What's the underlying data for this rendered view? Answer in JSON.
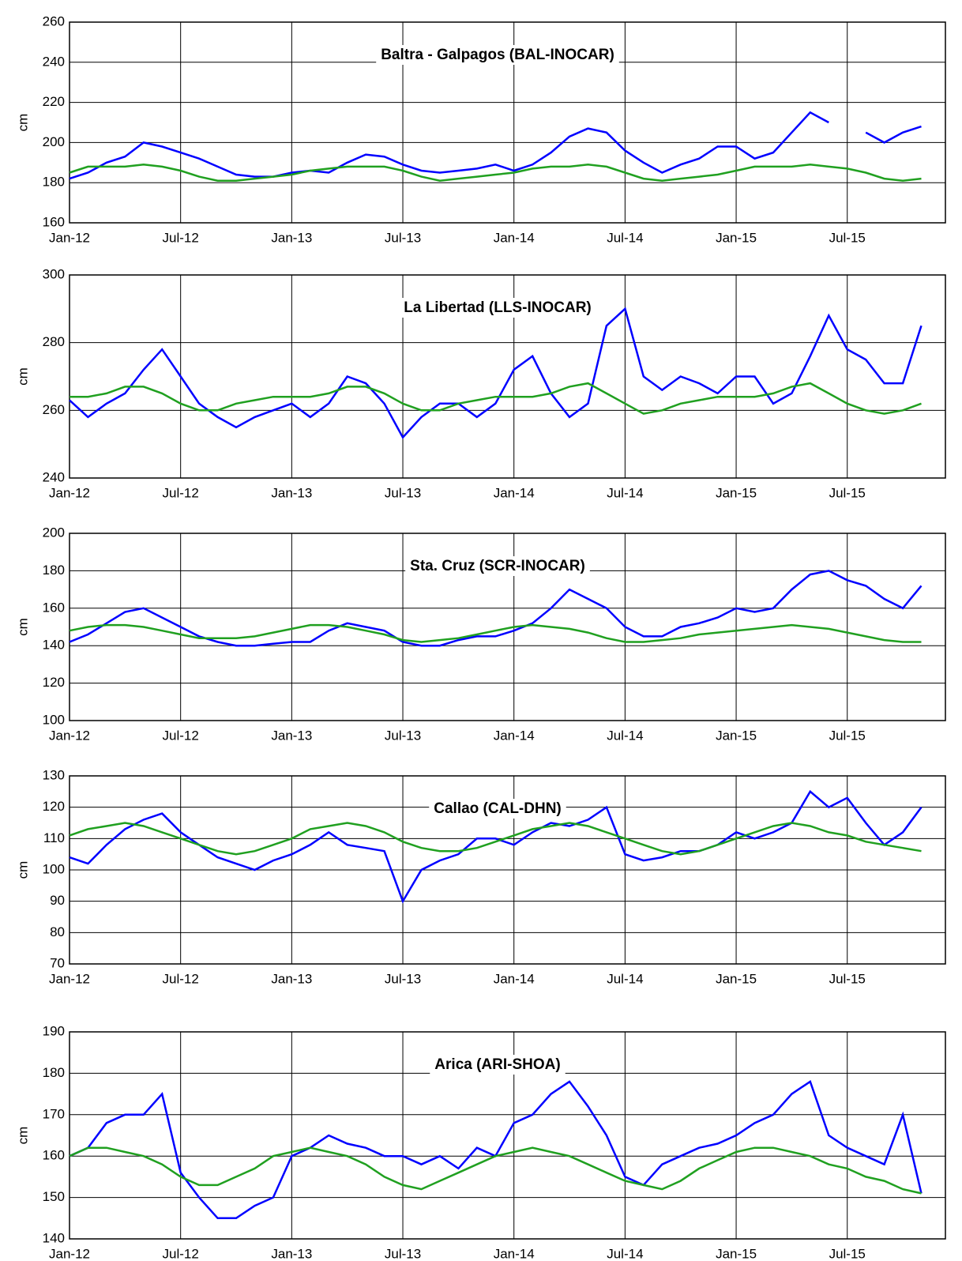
{
  "chart_data": [
    {
      "type": "line",
      "title": "Baltra - Galpagos (BAL-INOCAR)",
      "y_label": "cm",
      "x": [
        "Jan-12",
        "Feb-12",
        "Mar-12",
        "Apr-12",
        "May-12",
        "Jun-12",
        "Jul-12",
        "Aug-12",
        "Sep-12",
        "Oct-12",
        "Nov-12",
        "Dec-12",
        "Jan-13",
        "Feb-13",
        "Mar-13",
        "Apr-13",
        "May-13",
        "Jun-13",
        "Jul-13",
        "Aug-13",
        "Sep-13",
        "Oct-13",
        "Nov-13",
        "Dec-13",
        "Jan-14",
        "Feb-14",
        "Mar-14",
        "Apr-14",
        "May-14",
        "Jun-14",
        "Jul-14",
        "Aug-14",
        "Sep-14",
        "Oct-14",
        "Nov-14",
        "Dec-14",
        "Jan-15",
        "Feb-15",
        "Mar-15",
        "Apr-15",
        "May-15",
        "Jun-15",
        "Jul-15",
        "Aug-15",
        "Sep-15",
        "Oct-15",
        "Nov-15"
      ],
      "series": [
        {
          "color": "#0000ff",
          "values": [
            182,
            185,
            190,
            193,
            200,
            198,
            195,
            192,
            188,
            184,
            183,
            183,
            185,
            186,
            185,
            190,
            194,
            193,
            189,
            186,
            185,
            186,
            187,
            189,
            186,
            189,
            195,
            203,
            207,
            205,
            196,
            190,
            185,
            189,
            192,
            198,
            198,
            192,
            195,
            205,
            215,
            210,
            null,
            205,
            200,
            205,
            208
          ]
        },
        {
          "color": "#20a020",
          "values": [
            185,
            188,
            188,
            188,
            189,
            188,
            186,
            183,
            181,
            181,
            182,
            183,
            184,
            186,
            187,
            188,
            188,
            188,
            186,
            183,
            181,
            182,
            183,
            184,
            185,
            187,
            188,
            188,
            189,
            188,
            185,
            182,
            181,
            182,
            183,
            184,
            186,
            188,
            188,
            188,
            189,
            188,
            187,
            185,
            182,
            181,
            182
          ]
        }
      ],
      "ylim": [
        160,
        260
      ],
      "yticks": [
        160,
        180,
        200,
        220,
        240,
        260
      ],
      "grid": true
    },
    {
      "type": "line",
      "title": "La Libertad (LLS-INOCAR)",
      "y_label": "cm",
      "x": [
        "Jan-12",
        "Feb-12",
        "Mar-12",
        "Apr-12",
        "May-12",
        "Jun-12",
        "Jul-12",
        "Aug-12",
        "Sep-12",
        "Oct-12",
        "Nov-12",
        "Dec-12",
        "Jan-13",
        "Feb-13",
        "Mar-13",
        "Apr-13",
        "May-13",
        "Jun-13",
        "Jul-13",
        "Aug-13",
        "Sep-13",
        "Oct-13",
        "Nov-13",
        "Dec-13",
        "Jan-14",
        "Feb-14",
        "Mar-14",
        "Apr-14",
        "May-14",
        "Jun-14",
        "Jul-14",
        "Aug-14",
        "Sep-14",
        "Oct-14",
        "Nov-14",
        "Dec-14",
        "Jan-15",
        "Feb-15",
        "Mar-15",
        "Apr-15",
        "May-15",
        "Jun-15",
        "Jul-15",
        "Aug-15",
        "Sep-15",
        "Oct-15",
        "Nov-15"
      ],
      "series": [
        {
          "color": "#0000ff",
          "values": [
            263,
            258,
            262,
            265,
            272,
            278,
            270,
            262,
            258,
            255,
            258,
            260,
            262,
            258,
            262,
            270,
            268,
            262,
            252,
            258,
            262,
            262,
            258,
            262,
            272,
            276,
            265,
            258,
            262,
            285,
            290,
            270,
            266,
            270,
            268,
            265,
            270,
            270,
            262,
            265,
            276,
            288,
            278,
            275,
            268,
            268,
            285
          ]
        },
        {
          "color": "#20a020",
          "values": [
            264,
            264,
            265,
            267,
            267,
            265,
            262,
            260,
            260,
            262,
            263,
            264,
            264,
            264,
            265,
            267,
            267,
            265,
            262,
            260,
            260,
            262,
            263,
            264,
            264,
            264,
            265,
            267,
            268,
            265,
            262,
            259,
            260,
            262,
            263,
            264,
            264,
            264,
            265,
            267,
            268,
            265,
            262,
            260,
            259,
            260,
            262
          ]
        }
      ],
      "ylim": [
        240,
        300
      ],
      "yticks": [
        240,
        260,
        280,
        300
      ],
      "grid": true
    },
    {
      "type": "line",
      "title": "Sta. Cruz (SCR-INOCAR)",
      "y_label": "cm",
      "x": [
        "Jan-12",
        "Feb-12",
        "Mar-12",
        "Apr-12",
        "May-12",
        "Jun-12",
        "Jul-12",
        "Aug-12",
        "Sep-12",
        "Oct-12",
        "Nov-12",
        "Dec-12",
        "Jan-13",
        "Feb-13",
        "Mar-13",
        "Apr-13",
        "May-13",
        "Jun-13",
        "Jul-13",
        "Aug-13",
        "Sep-13",
        "Oct-13",
        "Nov-13",
        "Dec-13",
        "Jan-14",
        "Feb-14",
        "Mar-14",
        "Apr-14",
        "May-14",
        "Jun-14",
        "Jul-14",
        "Aug-14",
        "Sep-14",
        "Oct-14",
        "Nov-14",
        "Dec-14",
        "Jan-15",
        "Feb-15",
        "Mar-15",
        "Apr-15",
        "May-15",
        "Jun-15",
        "Jul-15",
        "Aug-15",
        "Sep-15",
        "Oct-15",
        "Nov-15"
      ],
      "series": [
        {
          "color": "#0000ff",
          "values": [
            142,
            146,
            152,
            158,
            160,
            155,
            150,
            145,
            142,
            140,
            140,
            141,
            142,
            142,
            148,
            152,
            150,
            148,
            142,
            140,
            140,
            143,
            145,
            145,
            148,
            152,
            160,
            170,
            165,
            160,
            150,
            145,
            145,
            150,
            152,
            155,
            160,
            158,
            160,
            170,
            178,
            180,
            175,
            172,
            165,
            160,
            172
          ]
        },
        {
          "color": "#20a020",
          "values": [
            148,
            150,
            151,
            151,
            150,
            148,
            146,
            144,
            144,
            144,
            145,
            147,
            149,
            151,
            151,
            150,
            148,
            146,
            143,
            142,
            143,
            144,
            146,
            148,
            150,
            151,
            150,
            149,
            147,
            144,
            142,
            142,
            143,
            144,
            146,
            147,
            148,
            149,
            150,
            151,
            150,
            149,
            147,
            145,
            143,
            142,
            142
          ]
        }
      ],
      "ylim": [
        100,
        200
      ],
      "yticks": [
        100,
        120,
        140,
        160,
        180,
        200
      ],
      "grid": true
    },
    {
      "type": "line",
      "title": "Callao (CAL-DHN)",
      "y_label": "cm",
      "x": [
        "Jan-12",
        "Feb-12",
        "Mar-12",
        "Apr-12",
        "May-12",
        "Jun-12",
        "Jul-12",
        "Aug-12",
        "Sep-12",
        "Oct-12",
        "Nov-12",
        "Dec-12",
        "Jan-13",
        "Feb-13",
        "Mar-13",
        "Apr-13",
        "May-13",
        "Jun-13",
        "Jul-13",
        "Aug-13",
        "Sep-13",
        "Oct-13",
        "Nov-13",
        "Dec-13",
        "Jan-14",
        "Feb-14",
        "Mar-14",
        "Apr-14",
        "May-14",
        "Jun-14",
        "Jul-14",
        "Aug-14",
        "Sep-14",
        "Oct-14",
        "Nov-14",
        "Dec-14",
        "Jan-15",
        "Feb-15",
        "Mar-15",
        "Apr-15",
        "May-15",
        "Jun-15",
        "Jul-15",
        "Aug-15",
        "Sep-15",
        "Oct-15",
        "Nov-15"
      ],
      "series": [
        {
          "color": "#0000ff",
          "values": [
            104,
            102,
            108,
            113,
            116,
            118,
            112,
            108,
            104,
            102,
            100,
            103,
            105,
            108,
            112,
            108,
            107,
            106,
            90,
            100,
            103,
            105,
            110,
            110,
            108,
            112,
            115,
            114,
            116,
            120,
            105,
            103,
            104,
            106,
            106,
            108,
            112,
            110,
            112,
            115,
            125,
            120,
            123,
            115,
            108,
            112,
            120
          ]
        },
        {
          "color": "#20a020",
          "values": [
            111,
            113,
            114,
            115,
            114,
            112,
            110,
            108,
            106,
            105,
            106,
            108,
            110,
            113,
            114,
            115,
            114,
            112,
            109,
            107,
            106,
            106,
            107,
            109,
            111,
            113,
            114,
            115,
            114,
            112,
            110,
            108,
            106,
            105,
            106,
            108,
            110,
            112,
            114,
            115,
            114,
            112,
            111,
            109,
            108,
            107,
            106
          ]
        }
      ],
      "ylim": [
        70,
        130
      ],
      "yticks": [
        70,
        80,
        90,
        100,
        110,
        120,
        130
      ],
      "grid": true
    },
    {
      "type": "line",
      "title": "Arica (ARI-SHOA)",
      "y_label": "cm",
      "x": [
        "Jan-12",
        "Feb-12",
        "Mar-12",
        "Apr-12",
        "May-12",
        "Jun-12",
        "Jul-12",
        "Aug-12",
        "Sep-12",
        "Oct-12",
        "Nov-12",
        "Dec-12",
        "Jan-13",
        "Feb-13",
        "Mar-13",
        "Apr-13",
        "May-13",
        "Jun-13",
        "Jul-13",
        "Aug-13",
        "Sep-13",
        "Oct-13",
        "Nov-13",
        "Dec-13",
        "Jan-14",
        "Feb-14",
        "Mar-14",
        "Apr-14",
        "May-14",
        "Jun-14",
        "Jul-14",
        "Aug-14",
        "Sep-14",
        "Oct-14",
        "Nov-14",
        "Dec-14",
        "Jan-15",
        "Feb-15",
        "Mar-15",
        "Apr-15",
        "May-15",
        "Jun-15",
        "Jul-15",
        "Aug-15",
        "Sep-15",
        "Oct-15",
        "Nov-15"
      ],
      "series": [
        {
          "color": "#0000ff",
          "values": [
            160,
            162,
            168,
            170,
            170,
            175,
            156,
            150,
            145,
            145,
            148,
            150,
            160,
            162,
            165,
            163,
            162,
            160,
            160,
            158,
            160,
            157,
            162,
            160,
            168,
            170,
            175,
            178,
            172,
            165,
            155,
            153,
            158,
            160,
            162,
            163,
            165,
            168,
            170,
            175,
            178,
            165,
            162,
            160,
            158,
            170,
            151
          ]
        },
        {
          "color": "#20a020",
          "values": [
            160,
            162,
            162,
            161,
            160,
            158,
            155,
            153,
            153,
            155,
            157,
            160,
            161,
            162,
            161,
            160,
            158,
            155,
            153,
            152,
            154,
            156,
            158,
            160,
            161,
            162,
            161,
            160,
            158,
            156,
            154,
            153,
            152,
            154,
            157,
            159,
            161,
            162,
            162,
            161,
            160,
            158,
            157,
            155,
            154,
            152,
            151
          ]
        }
      ],
      "ylim": [
        140,
        190
      ],
      "yticks": [
        140,
        150,
        160,
        170,
        180,
        190
      ],
      "grid": true
    }
  ]
}
